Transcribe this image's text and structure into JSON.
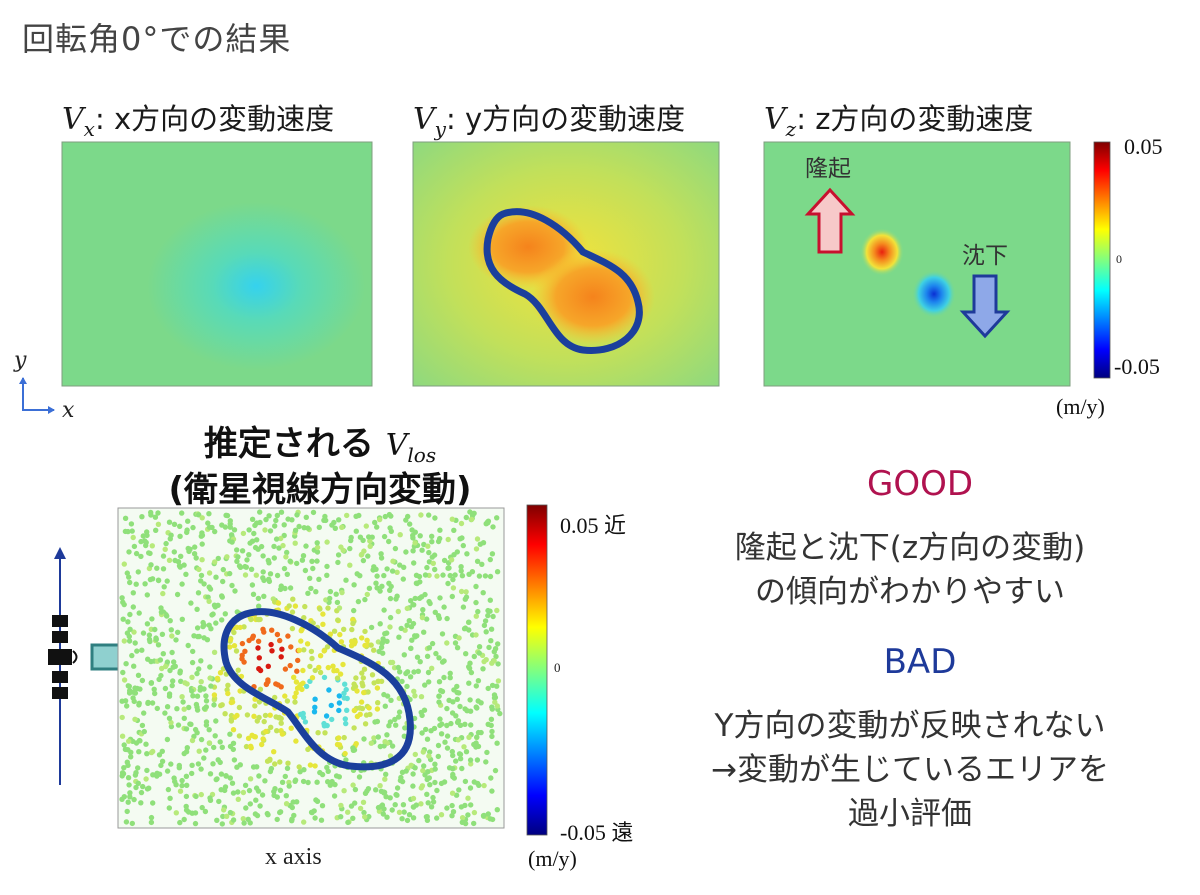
{
  "title": "回転角0°での結果",
  "panels": [
    {
      "symbol": "V",
      "sub": "x",
      "label": ": x方向の変動速度"
    },
    {
      "symbol": "V",
      "sub": "y",
      "label": ": y方向の変動速度"
    },
    {
      "symbol": "V",
      "sub": "z",
      "label": ": z方向の変動速度"
    }
  ],
  "annotations": {
    "uplift": "隆起",
    "subsidence": "沈下"
  },
  "axes_indicator": {
    "y": "y",
    "x": "x"
  },
  "colorbar_top": {
    "max": "0.05",
    "mid": "0",
    "min": "-0.05",
    "unit": "(m/y)"
  },
  "estimated": {
    "title_prefix": "推定される",
    "symbol": "V",
    "sub": "los",
    "subtitle": "(衛星視線方向変動)",
    "xlabel": "x axis"
  },
  "colorbar_bottom": {
    "max": "0.05 近",
    "mid": "0",
    "min": "-0.05 遠",
    "unit": "(m/y)"
  },
  "good": {
    "heading": "GOOD",
    "lines": [
      "隆起と沈下(z方向の変動)",
      "の傾向がわかりやすい"
    ]
  },
  "bad": {
    "heading": "BAD",
    "lines": [
      "Y方向の変動が反映されない",
      "→変動が生じているエリアを",
      "過小評価"
    ]
  },
  "colors": {
    "good": "#b0124f",
    "bad": "#1e3a9a",
    "contour": "#1b3f9c",
    "field": "#7cd98a"
  }
}
